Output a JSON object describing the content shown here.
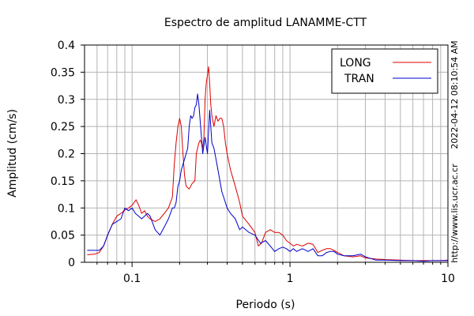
{
  "chart_data": {
    "type": "line",
    "title": "Espectro de amplitud LANAMME-CTT",
    "xlabel": "Periodo (s)",
    "ylabel": "Amplitud (cm/s)",
    "x_scale": "log",
    "xlim": [
      0.05,
      10
    ],
    "ylim": [
      0,
      0.4
    ],
    "x_tick_labels": [
      {
        "value": 0.1,
        "label": "0.1"
      },
      {
        "value": 1,
        "label": "1"
      },
      {
        "value": 10,
        "label": "10"
      }
    ],
    "y_tick_labels": [
      {
        "value": 0,
        "label": "0"
      },
      {
        "value": 0.05,
        "label": "0.05"
      },
      {
        "value": 0.1,
        "label": "0.1"
      },
      {
        "value": 0.15,
        "label": "0.15"
      },
      {
        "value": 0.2,
        "label": "0.2"
      },
      {
        "value": 0.25,
        "label": "0.25"
      },
      {
        "value": 0.3,
        "label": "0.3"
      },
      {
        "value": 0.35,
        "label": "0.35"
      },
      {
        "value": 0.4,
        "label": "0.4"
      }
    ],
    "grid": true,
    "legend_position": "top-right",
    "side_annotations": {
      "timestamp": "2022-04-12 08:10:54 AM",
      "url": "http://www.lis.ucr.ac.cr"
    },
    "series": [
      {
        "name": "LONG",
        "color": "#dd0000",
        "points": [
          [
            0.052,
            0.014
          ],
          [
            0.058,
            0.015
          ],
          [
            0.062,
            0.018
          ],
          [
            0.066,
            0.03
          ],
          [
            0.07,
            0.05
          ],
          [
            0.075,
            0.07
          ],
          [
            0.08,
            0.085
          ],
          [
            0.085,
            0.09
          ],
          [
            0.09,
            0.096
          ],
          [
            0.095,
            0.1
          ],
          [
            0.1,
            0.105
          ],
          [
            0.103,
            0.11
          ],
          [
            0.106,
            0.115
          ],
          [
            0.11,
            0.105
          ],
          [
            0.115,
            0.09
          ],
          [
            0.12,
            0.095
          ],
          [
            0.125,
            0.085
          ],
          [
            0.13,
            0.08
          ],
          [
            0.14,
            0.075
          ],
          [
            0.15,
            0.08
          ],
          [
            0.16,
            0.09
          ],
          [
            0.17,
            0.1
          ],
          [
            0.18,
            0.12
          ],
          [
            0.185,
            0.18
          ],
          [
            0.19,
            0.22
          ],
          [
            0.195,
            0.25
          ],
          [
            0.2,
            0.265
          ],
          [
            0.205,
            0.25
          ],
          [
            0.21,
            0.2
          ],
          [
            0.215,
            0.16
          ],
          [
            0.22,
            0.14
          ],
          [
            0.23,
            0.135
          ],
          [
            0.24,
            0.145
          ],
          [
            0.25,
            0.15
          ],
          [
            0.255,
            0.2
          ],
          [
            0.26,
            0.21
          ],
          [
            0.265,
            0.22
          ],
          [
            0.27,
            0.225
          ],
          [
            0.275,
            0.22
          ],
          [
            0.28,
            0.21
          ],
          [
            0.285,
            0.23
          ],
          [
            0.29,
            0.3
          ],
          [
            0.295,
            0.33
          ],
          [
            0.3,
            0.345
          ],
          [
            0.305,
            0.36
          ],
          [
            0.31,
            0.33
          ],
          [
            0.315,
            0.29
          ],
          [
            0.32,
            0.27
          ],
          [
            0.33,
            0.25
          ],
          [
            0.34,
            0.27
          ],
          [
            0.35,
            0.26
          ],
          [
            0.36,
            0.265
          ],
          [
            0.37,
            0.265
          ],
          [
            0.38,
            0.25
          ],
          [
            0.39,
            0.22
          ],
          [
            0.4,
            0.2
          ],
          [
            0.42,
            0.17
          ],
          [
            0.45,
            0.14
          ],
          [
            0.48,
            0.11
          ],
          [
            0.5,
            0.085
          ],
          [
            0.55,
            0.07
          ],
          [
            0.6,
            0.055
          ],
          [
            0.63,
            0.03
          ],
          [
            0.66,
            0.035
          ],
          [
            0.7,
            0.055
          ],
          [
            0.75,
            0.06
          ],
          [
            0.8,
            0.055
          ],
          [
            0.85,
            0.055
          ],
          [
            0.9,
            0.05
          ],
          [
            0.95,
            0.04
          ],
          [
            1.0,
            0.035
          ],
          [
            1.05,
            0.03
          ],
          [
            1.1,
            0.033
          ],
          [
            1.2,
            0.03
          ],
          [
            1.3,
            0.035
          ],
          [
            1.4,
            0.033
          ],
          [
            1.5,
            0.018
          ],
          [
            1.6,
            0.022
          ],
          [
            1.7,
            0.025
          ],
          [
            1.8,
            0.025
          ],
          [
            1.9,
            0.022
          ],
          [
            2.0,
            0.018
          ],
          [
            2.2,
            0.012
          ],
          [
            2.5,
            0.01
          ],
          [
            2.8,
            0.012
          ],
          [
            3.0,
            0.008
          ],
          [
            3.5,
            0.006
          ],
          [
            4.0,
            0.005
          ],
          [
            5.0,
            0.004
          ],
          [
            6.0,
            0.003
          ],
          [
            7.0,
            0.003
          ],
          [
            8.0,
            0.003
          ],
          [
            9.0,
            0.003
          ],
          [
            10.0,
            0.004
          ]
        ]
      },
      {
        "name": "TRAN",
        "color": "#0000cc",
        "points": [
          [
            0.052,
            0.022
          ],
          [
            0.058,
            0.022
          ],
          [
            0.062,
            0.022
          ],
          [
            0.066,
            0.03
          ],
          [
            0.07,
            0.05
          ],
          [
            0.075,
            0.07
          ],
          [
            0.08,
            0.075
          ],
          [
            0.085,
            0.08
          ],
          [
            0.09,
            0.1
          ],
          [
            0.095,
            0.095
          ],
          [
            0.1,
            0.1
          ],
          [
            0.105,
            0.09
          ],
          [
            0.11,
            0.085
          ],
          [
            0.115,
            0.08
          ],
          [
            0.12,
            0.085
          ],
          [
            0.125,
            0.09
          ],
          [
            0.13,
            0.085
          ],
          [
            0.14,
            0.06
          ],
          [
            0.15,
            0.05
          ],
          [
            0.16,
            0.065
          ],
          [
            0.17,
            0.08
          ],
          [
            0.18,
            0.1
          ],
          [
            0.185,
            0.1
          ],
          [
            0.19,
            0.11
          ],
          [
            0.195,
            0.14
          ],
          [
            0.2,
            0.15
          ],
          [
            0.205,
            0.17
          ],
          [
            0.21,
            0.18
          ],
          [
            0.22,
            0.2
          ],
          [
            0.225,
            0.21
          ],
          [
            0.23,
            0.25
          ],
          [
            0.235,
            0.27
          ],
          [
            0.24,
            0.265
          ],
          [
            0.245,
            0.27
          ],
          [
            0.25,
            0.285
          ],
          [
            0.255,
            0.29
          ],
          [
            0.26,
            0.31
          ],
          [
            0.265,
            0.29
          ],
          [
            0.27,
            0.26
          ],
          [
            0.28,
            0.2
          ],
          [
            0.29,
            0.23
          ],
          [
            0.3,
            0.2
          ],
          [
            0.31,
            0.28
          ],
          [
            0.32,
            0.22
          ],
          [
            0.33,
            0.21
          ],
          [
            0.34,
            0.19
          ],
          [
            0.35,
            0.17
          ],
          [
            0.37,
            0.13
          ],
          [
            0.38,
            0.12
          ],
          [
            0.4,
            0.1
          ],
          [
            0.42,
            0.09
          ],
          [
            0.45,
            0.08
          ],
          [
            0.48,
            0.06
          ],
          [
            0.5,
            0.065
          ],
          [
            0.55,
            0.055
          ],
          [
            0.6,
            0.05
          ],
          [
            0.65,
            0.035
          ],
          [
            0.7,
            0.04
          ],
          [
            0.75,
            0.03
          ],
          [
            0.8,
            0.02
          ],
          [
            0.85,
            0.025
          ],
          [
            0.9,
            0.028
          ],
          [
            0.95,
            0.025
          ],
          [
            1.0,
            0.02
          ],
          [
            1.05,
            0.025
          ],
          [
            1.1,
            0.02
          ],
          [
            1.2,
            0.025
          ],
          [
            1.3,
            0.02
          ],
          [
            1.4,
            0.025
          ],
          [
            1.5,
            0.012
          ],
          [
            1.6,
            0.012
          ],
          [
            1.7,
            0.018
          ],
          [
            1.8,
            0.02
          ],
          [
            1.9,
            0.02
          ],
          [
            2.0,
            0.015
          ],
          [
            2.2,
            0.012
          ],
          [
            2.5,
            0.012
          ],
          [
            2.8,
            0.015
          ],
          [
            3.0,
            0.01
          ],
          [
            3.5,
            0.004
          ],
          [
            4.0,
            0.004
          ],
          [
            5.0,
            0.003
          ],
          [
            6.0,
            0.003
          ],
          [
            7.0,
            0.002
          ],
          [
            8.0,
            0.003
          ],
          [
            9.0,
            0.003
          ],
          [
            10.0,
            0.003
          ]
        ]
      }
    ]
  }
}
